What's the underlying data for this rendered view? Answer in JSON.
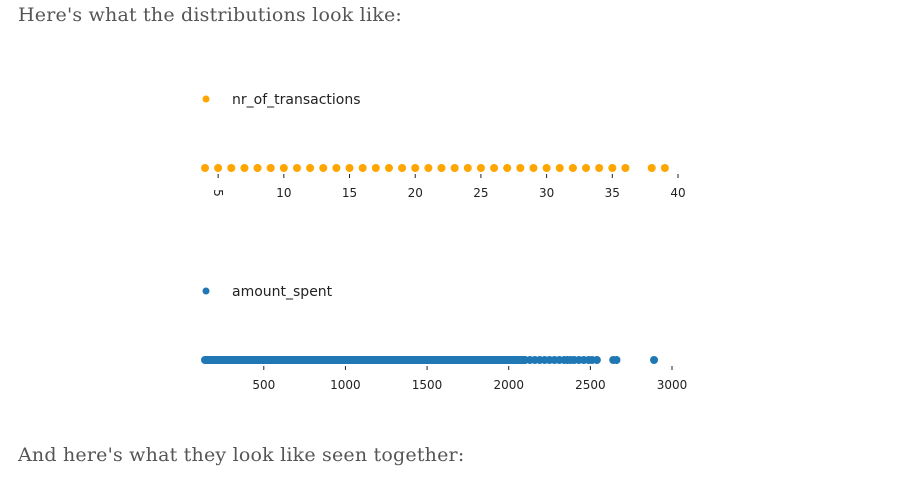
{
  "text": {
    "intro": "Here's what the distributions look like:",
    "outro": "And here's what they look like seen together:"
  },
  "chart_data": [
    {
      "type": "scatter",
      "legend": "nr_of_transactions",
      "legend_placement": "top-left",
      "color": "#ffa500",
      "xlim": [
        4,
        40
      ],
      "xticks": [
        5,
        10,
        15,
        20,
        25,
        30,
        35,
        40
      ],
      "tick_label_rotation": {
        "5": 90,
        "40": 0
      },
      "grid": false,
      "y": 0,
      "x": [
        4,
        5,
        6,
        7,
        8,
        9,
        10,
        11,
        12,
        13,
        14,
        15,
        16,
        17,
        18,
        19,
        20,
        21,
        22,
        23,
        24,
        25,
        26,
        27,
        28,
        29,
        30,
        31,
        32,
        33,
        34,
        35,
        36,
        38,
        39
      ]
    },
    {
      "type": "scatter",
      "legend": "amount_spent",
      "legend_placement": "top-left",
      "color": "#1f77b4",
      "xlim": [
        140,
        3000
      ],
      "xticks": [
        500,
        1000,
        1500,
        2000,
        2500,
        3000
      ],
      "grid": false,
      "y": 0,
      "dense_range": [
        140,
        2100
      ],
      "x": [
        2130,
        2160,
        2190,
        2220,
        2250,
        2280,
        2310,
        2340,
        2360,
        2380,
        2400,
        2430,
        2460,
        2490,
        2510,
        2540,
        2640,
        2660,
        2890
      ]
    }
  ]
}
